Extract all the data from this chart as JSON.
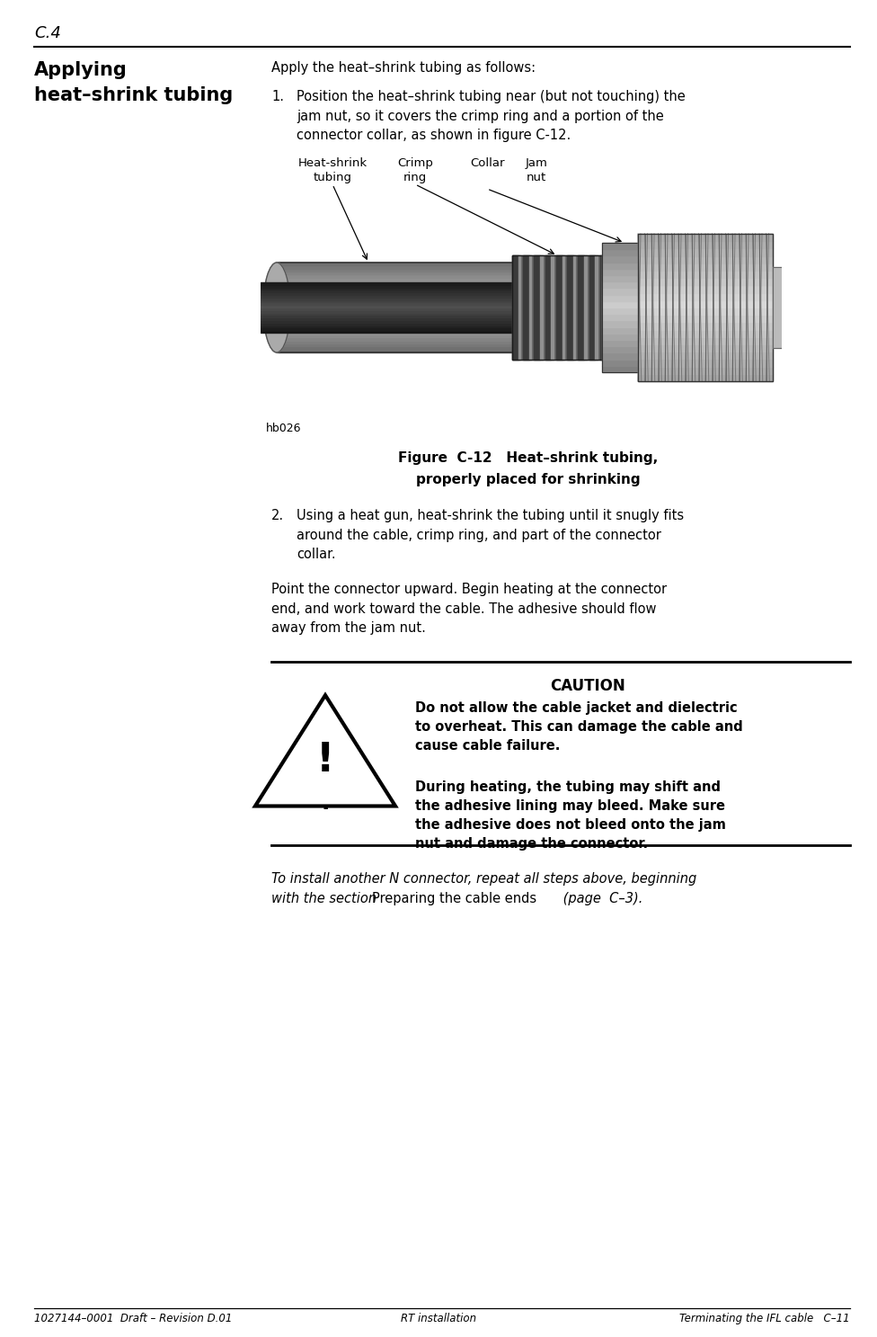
{
  "page_header": "C.4",
  "left_heading_line1": "Applying",
  "left_heading_line2": "heat–shrink tubing",
  "main_text_intro": "Apply the heat–shrink tubing as follows:",
  "step1_num": "1.",
  "step1_text": "Position the heat–shrink tubing near (but not touching) the\njam nut, so it covers the crimp ring and a portion of the\nconnector collar, as shown in figure C-12.",
  "step2_num": "2.",
  "step2_text": "Using a heat gun, heat-shrink the tubing until it snugly fits\naround the cable, crimp ring, and part of the connector\ncollar.",
  "para2_text": "Point the connector upward. Begin heating at the connector\nend, and work toward the cable. The adhesive should flow\naway from the jam nut.",
  "figure_caption_line1": "Figure  C-12   Heat–shrink tubing,",
  "figure_caption_line2": "properly placed for shrinking",
  "figure_label": "hb026",
  "caution_title": "CAUTION",
  "caution_text1": "Do not allow the cable jacket and dielectric\nto overheat. This can damage the cable and\ncause cable failure.",
  "caution_text2": "During heating, the tubing may shift and\nthe adhesive lining may bleed. Make sure\nthe adhesive does not bleed onto the jam\nnut and damage the connector.",
  "closing_italic": "To install another N connector, repeat all steps above, beginning\nwith the section ",
  "closing_normal": "Preparing the cable ends",
  "closing_paren_italic": " (page  C–3).",
  "footer_left": "1027144–0001  Draft – Revision D.01",
  "footer_center": "RT installation",
  "footer_right": "Terminating the IFL cable   C–11",
  "bg_color": "#ffffff",
  "text_color": "#000000"
}
